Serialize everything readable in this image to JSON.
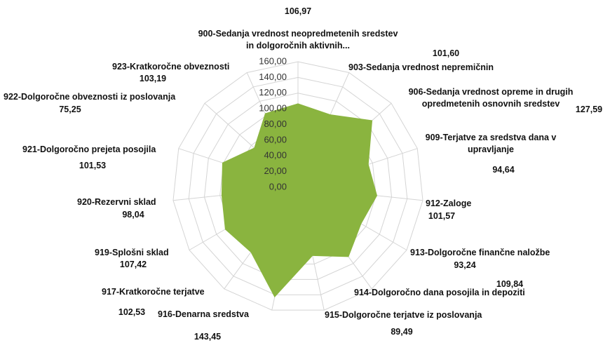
{
  "chart_data": {
    "type": "radar",
    "categories": [
      "900-Sedanja vrednost neopredmetenih sredstev in dolgoročnih aktivnih...",
      "903-Sedanja vrednost nepremičnin",
      "906-Sedanja vrednost opreme in drugih opredmetenih osnovnih sredstev",
      "909-Terjatve za sredstva dana v upravljanje",
      "912-Zaloge",
      "913-Dolgoročne finančne naložbe",
      "914-Dolgoročno dana posojila in depoziti",
      "915-Dolgoročne terjatve iz poslovanja",
      "916-Denarna sredstva",
      "917-Kratkoročne terjatve",
      "919-Splošni sklad",
      "920-Rezervni sklad",
      "921-Dolgoročno prejeta posojila",
      "922-Dolgoročne obveznosti iz poslovanja",
      "923-Kratkoročne obveznosti"
    ],
    "values": [
      106.97,
      101.6,
      127.59,
      94.64,
      101.57,
      93.24,
      109.84,
      89.49,
      143.45,
      102.53,
      107.42,
      98.04,
      101.53,
      75.25,
      103.19
    ],
    "value_labels": [
      "106,97",
      "101,60",
      "127,59",
      "94,64",
      "101,57",
      "93,24",
      "109,84",
      "89,49",
      "143,45",
      "102,53",
      "107,42",
      "98,04",
      "101,53",
      "75,25",
      "103,19"
    ],
    "color": "#8ab43f",
    "ylim": [
      0,
      160
    ],
    "yticks": [
      {
        "value": 0,
        "label": "0,00"
      },
      {
        "value": 20,
        "label": "20,00"
      },
      {
        "value": 40,
        "label": "40,00"
      },
      {
        "value": 60,
        "label": "60,00"
      },
      {
        "value": 80,
        "label": "80,00"
      },
      {
        "value": 100,
        "label": "100,00"
      },
      {
        "value": 120,
        "label": "120,00"
      },
      {
        "value": 140,
        "label": "140,00"
      },
      {
        "value": 160,
        "label": "160,00"
      }
    ],
    "grid": true
  }
}
